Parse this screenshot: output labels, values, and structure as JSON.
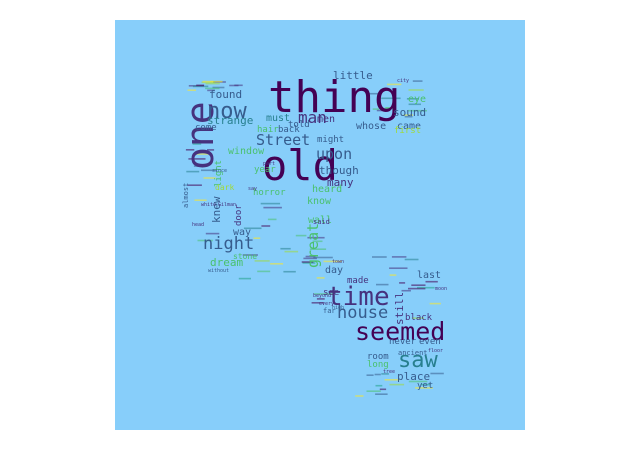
{
  "background_color": "#87CEFA",
  "palette": [
    "#440154",
    "#46327e",
    "#365c8d",
    "#277f8e",
    "#1fa187",
    "#4ac16d",
    "#a0da39",
    "#fde725"
  ],
  "words": [
    {
      "text": "thing",
      "weight": 1.0,
      "color": "#440154"
    },
    {
      "text": "one",
      "weight": 0.95,
      "color": "#46327e",
      "rotate": true
    },
    {
      "text": "old",
      "weight": 0.92,
      "color": "#440154"
    },
    {
      "text": "time",
      "weight": 0.7,
      "color": "#46327e"
    },
    {
      "text": "seemed",
      "weight": 0.66,
      "color": "#440154"
    },
    {
      "text": "saw",
      "weight": 0.6,
      "color": "#277f8e"
    },
    {
      "text": "now",
      "weight": 0.55,
      "color": "#365c8d"
    },
    {
      "text": "house",
      "weight": 0.5,
      "color": "#365c8d"
    },
    {
      "text": "night",
      "weight": 0.48,
      "color": "#365c8d"
    },
    {
      "text": "man",
      "weight": 0.44,
      "color": "#46327e"
    },
    {
      "text": "Street",
      "weight": 0.42,
      "color": "#365c8d"
    },
    {
      "text": "great",
      "weight": 0.42,
      "color": "#4ac16d",
      "rotate": true
    },
    {
      "text": "upon",
      "weight": 0.4,
      "color": "#365c8d"
    },
    {
      "text": "little",
      "weight": 0.34,
      "color": "#365c8d"
    },
    {
      "text": "sound",
      "weight": 0.32,
      "color": "#365c8d"
    },
    {
      "text": "strange",
      "weight": 0.32,
      "color": "#277f8e"
    },
    {
      "text": "found",
      "weight": 0.32,
      "color": "#365c8d"
    },
    {
      "text": "must",
      "weight": 0.3,
      "color": "#277f8e"
    },
    {
      "text": "though",
      "weight": 0.3,
      "color": "#365c8d"
    },
    {
      "text": "many",
      "weight": 0.3,
      "color": "#46327e"
    },
    {
      "text": "window",
      "weight": 0.3,
      "color": "#4ac16d"
    },
    {
      "text": "knew",
      "weight": 0.3,
      "color": "#365c8d",
      "rotate": true
    },
    {
      "text": "place",
      "weight": 0.3,
      "color": "#365c8d"
    },
    {
      "text": "dream",
      "weight": 0.3,
      "color": "#4ac16d"
    },
    {
      "text": "still",
      "weight": 0.3,
      "color": "#46327e",
      "rotate": true
    },
    {
      "text": "came",
      "weight": 0.28,
      "color": "#365c8d"
    },
    {
      "text": "men",
      "weight": 0.28,
      "color": "#46327e"
    },
    {
      "text": "eye",
      "weight": 0.28,
      "color": "#4ac16d"
    },
    {
      "text": "whose",
      "weight": 0.28,
      "color": "#365c8d"
    },
    {
      "text": "heard",
      "weight": 0.28,
      "color": "#4ac16d"
    },
    {
      "text": "know",
      "weight": 0.28,
      "color": "#4ac16d"
    },
    {
      "text": "wall",
      "weight": 0.26,
      "color": "#4ac16d"
    },
    {
      "text": "day",
      "weight": 0.26,
      "color": "#365c8d"
    },
    {
      "text": "door",
      "weight": 0.26,
      "color": "#46327e",
      "rotate": true
    },
    {
      "text": "year",
      "weight": 0.26,
      "color": "#4ac16d"
    },
    {
      "text": "way",
      "weight": 0.24,
      "color": "#365c8d"
    },
    {
      "text": "light",
      "weight": 0.24,
      "color": "#4ac16d",
      "rotate": true
    },
    {
      "text": "horror",
      "weight": 0.24,
      "color": "#4ac16d"
    },
    {
      "text": "last",
      "weight": 0.24,
      "color": "#365c8d"
    },
    {
      "text": "never",
      "weight": 0.24,
      "color": "#365c8d"
    },
    {
      "text": "even",
      "weight": 0.24,
      "color": "#365c8d"
    },
    {
      "text": "room",
      "weight": 0.22,
      "color": "#365c8d"
    },
    {
      "text": "long",
      "weight": 0.22,
      "color": "#4ac16d"
    },
    {
      "text": "yet",
      "weight": 0.22,
      "color": "#365c8d"
    },
    {
      "text": "black",
      "weight": 0.22,
      "color": "#46327e"
    },
    {
      "text": "made",
      "weight": 0.2,
      "color": "#46327e"
    },
    {
      "text": "see",
      "weight": 0.2,
      "color": "#46327e"
    },
    {
      "text": "told",
      "weight": 0.2,
      "color": "#365c8d"
    },
    {
      "text": "hair",
      "weight": 0.2,
      "color": "#4ac16d"
    },
    {
      "text": "back",
      "weight": 0.2,
      "color": "#365c8d"
    },
    {
      "text": "come",
      "weight": 0.2,
      "color": "#365c8d"
    },
    {
      "text": "might",
      "weight": 0.2,
      "color": "#365c8d"
    },
    {
      "text": "first",
      "weight": 0.2,
      "color": "#a0da39"
    },
    {
      "text": "almost",
      "weight": 0.18,
      "color": "#365c8d",
      "rotate": true
    },
    {
      "text": "stone",
      "weight": 0.18,
      "color": "#4ac16d"
    },
    {
      "text": "ancient",
      "weight": 0.18,
      "color": "#365c8d"
    },
    {
      "text": "dark",
      "weight": 0.18,
      "color": "#a0da39"
    },
    {
      "text": "far",
      "weight": 0.16,
      "color": "#365c8d"
    },
    {
      "text": "said",
      "weight": 0.16,
      "color": "#46327e"
    },
    {
      "text": "white",
      "weight": 0.14,
      "color": "#46327e"
    },
    {
      "text": "Gilman",
      "weight": 0.12,
      "color": "#46327e"
    },
    {
      "text": "since",
      "weight": 0.12,
      "color": "#365c8d"
    },
    {
      "text": "high",
      "weight": 0.12,
      "color": "#365c8d"
    },
    {
      "text": "town",
      "weight": 0.12,
      "color": "#46327e"
    },
    {
      "text": "city",
      "weight": 0.12,
      "color": "#46327e"
    },
    {
      "text": "moon",
      "weight": 0.12,
      "color": "#46327e"
    },
    {
      "text": "without",
      "weight": 0.12,
      "color": "#365c8d"
    },
    {
      "text": "tree",
      "weight": 0.12,
      "color": "#46327e"
    },
    {
      "text": "floor",
      "weight": 0.12,
      "color": "#46327e"
    },
    {
      "text": "part",
      "weight": 0.12,
      "color": "#46327e"
    },
    {
      "text": "say",
      "weight": 0.12,
      "color": "#46327e"
    },
    {
      "text": "head",
      "weight": 0.12,
      "color": "#46327e"
    },
    {
      "text": "every",
      "weight": 0.12,
      "color": "#46327e"
    },
    {
      "text": "beyond",
      "weight": 0.12,
      "color": "#46327e"
    }
  ]
}
